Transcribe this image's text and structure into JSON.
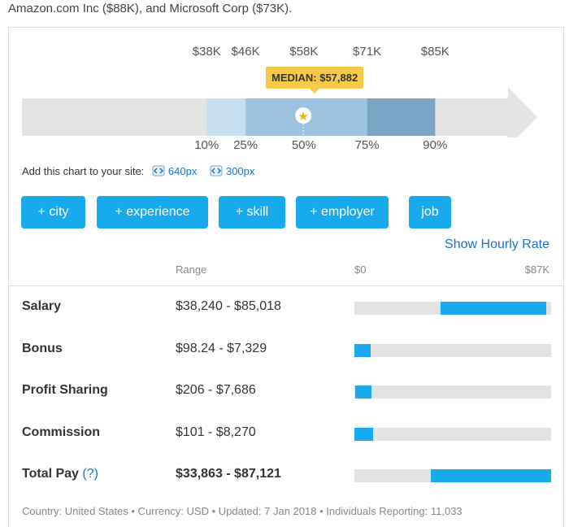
{
  "intro_text": "Amazon.com Inc ($88K), and Microsoft Corp ($73K).",
  "percentile_chart": {
    "value_labels": [
      "$38K",
      "$46K",
      "$58K",
      "$71K",
      "$85K"
    ],
    "percentile_labels": [
      "10%",
      "25%",
      "50%",
      "75%",
      "90%"
    ],
    "median_label": "MEDIAN: $57,882",
    "scale_min": 0,
    "scale_max": 100000,
    "percentile_values": [
      38000,
      46000,
      58000,
      71000,
      85000
    ],
    "median_value": 57882,
    "colors": {
      "track": "#e4e4e4",
      "band_10_25": "#c6dff0",
      "band_25_75": "#9cc4de",
      "band_75_90": "#7aa3c4",
      "median_marker": "#f7c948"
    }
  },
  "embed": {
    "label": "Add this chart to your site:",
    "link_640": "640px",
    "link_300": "300px"
  },
  "filters": [
    "+ city",
    "+ experience",
    "+ skill",
    "+ employer",
    "job"
  ],
  "show_hourly": "Show Hourly Rate",
  "table": {
    "range_header": "Range",
    "scale_min_label": "$0",
    "scale_max_label": "$87K",
    "scale_max": 87000,
    "rows": [
      {
        "label": "Salary",
        "range": "$38,240 - $85,018",
        "low": 38240,
        "high": 85018,
        "bold": false,
        "help": ""
      },
      {
        "label": "Bonus",
        "range": "$98.24 - $7,329",
        "low": 98.24,
        "high": 7329,
        "bold": false,
        "help": ""
      },
      {
        "label": "Profit Sharing",
        "range": "$206 - $7,686",
        "low": 206,
        "high": 7686,
        "bold": false,
        "help": ""
      },
      {
        "label": "Commission",
        "range": "$101 - $8,270",
        "low": 101,
        "high": 8270,
        "bold": false,
        "help": ""
      },
      {
        "label": "Total Pay",
        "range": "$33,863 - $87,121",
        "low": 33863,
        "high": 87121,
        "bold": true,
        "help": "(?)"
      }
    ]
  },
  "footer": "Country: United States • Currency: USD • Updated: 7 Jan 2018 • Individuals Reporting: 11,033",
  "accent_color": "#19aaee"
}
